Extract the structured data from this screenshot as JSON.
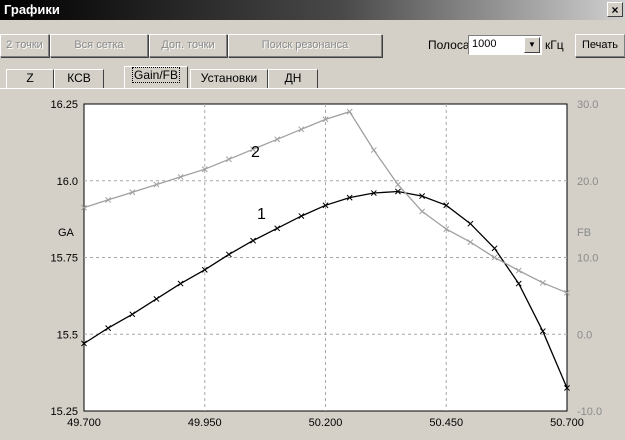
{
  "window": {
    "title": "Графики",
    "close_glyph": "×"
  },
  "toolbar": {
    "buttons": [
      "2 точки",
      "Вся сетка",
      "Доп. точки",
      "Поиск резонанса"
    ],
    "band_label": "Полоса",
    "band_value": "1000",
    "unit_label": "кГц",
    "print_label": "Печать"
  },
  "tabs": [
    "Z",
    "КСВ",
    "Gain/FB",
    "Установки",
    "ДН"
  ],
  "active_tab": "Gain/FB",
  "chart_data": {
    "type": "line",
    "x": [
      49.7,
      49.75,
      49.8,
      49.85,
      49.9,
      49.95,
      50.0,
      50.05,
      50.1,
      50.15,
      50.2,
      50.25,
      50.3,
      50.35,
      50.4,
      50.45,
      50.5,
      50.55,
      50.6,
      50.65,
      50.7
    ],
    "x_ticks": [
      "49.700",
      "49.950",
      "50.200",
      "50.450",
      "50.700"
    ],
    "xlim": [
      49.7,
      50.7
    ],
    "left_axis": {
      "label": "GA",
      "ylim": [
        15.25,
        16.25
      ],
      "ticks": [
        "16.25",
        "16.0",
        "15.75",
        "15.5",
        "15.25"
      ]
    },
    "right_axis": {
      "label": "FB",
      "ylim": [
        -10.0,
        30.0
      ],
      "ticks": [
        "30.0",
        "20.0",
        "10.0",
        "0.0",
        "-10.0"
      ]
    },
    "series": [
      {
        "name": "1",
        "axis": "left",
        "color": "#000000",
        "values": [
          15.47,
          15.52,
          15.565,
          15.615,
          15.665,
          15.71,
          15.76,
          15.805,
          15.845,
          15.885,
          15.92,
          15.945,
          15.96,
          15.965,
          15.95,
          15.92,
          15.86,
          15.78,
          15.665,
          15.51,
          15.325
        ]
      },
      {
        "name": "2",
        "axis": "right",
        "color": "#a0a0a0",
        "values": [
          16.5,
          17.5,
          18.5,
          19.5,
          20.5,
          21.5,
          22.8,
          24.1,
          25.4,
          26.7,
          28.0,
          29.0,
          24.0,
          19.5,
          16.0,
          13.7,
          12.0,
          10.0,
          8.3,
          6.7,
          5.4
        ]
      }
    ],
    "grid": true
  }
}
